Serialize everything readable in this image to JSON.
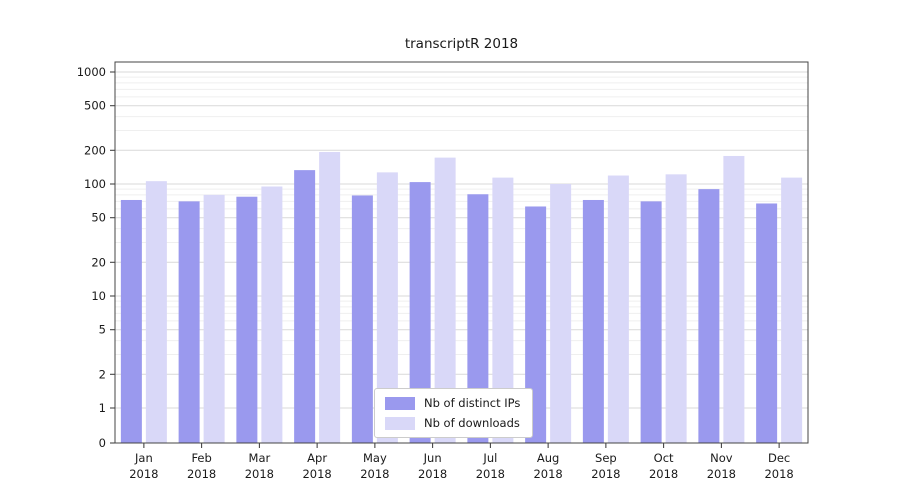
{
  "figure": {
    "title": "transcriptR 2018"
  },
  "chart_data": {
    "type": "bar",
    "title": "transcriptR 2018",
    "yscale": "symlog",
    "grid": true,
    "ylim": [
      0,
      1300
    ],
    "yticks": [
      0,
      1,
      2,
      5,
      10,
      20,
      50,
      100,
      200,
      500,
      1000
    ],
    "minor_ticks": [
      3,
      4,
      6,
      7,
      8,
      9,
      30,
      40,
      60,
      70,
      80,
      90,
      300,
      400,
      600,
      700,
      800,
      900
    ],
    "x_year": "2018",
    "categories": [
      "Jan",
      "Feb",
      "Mar",
      "Apr",
      "May",
      "Jun",
      "Jul",
      "Aug",
      "Sep",
      "Oct",
      "Nov",
      "Dec"
    ],
    "series": [
      {
        "name": "Nb of distinct IPs",
        "color": "#9a99ee",
        "values": [
          72,
          70,
          77,
          133,
          79,
          104,
          81,
          63,
          72,
          70,
          90,
          67
        ]
      },
      {
        "name": "Nb of downloads",
        "color": "#d9d8f8",
        "values": [
          106,
          80,
          95,
          193,
          127,
          172,
          114,
          100,
          119,
          122,
          178,
          114
        ]
      }
    ],
    "legend": {
      "position": "lower center"
    }
  }
}
